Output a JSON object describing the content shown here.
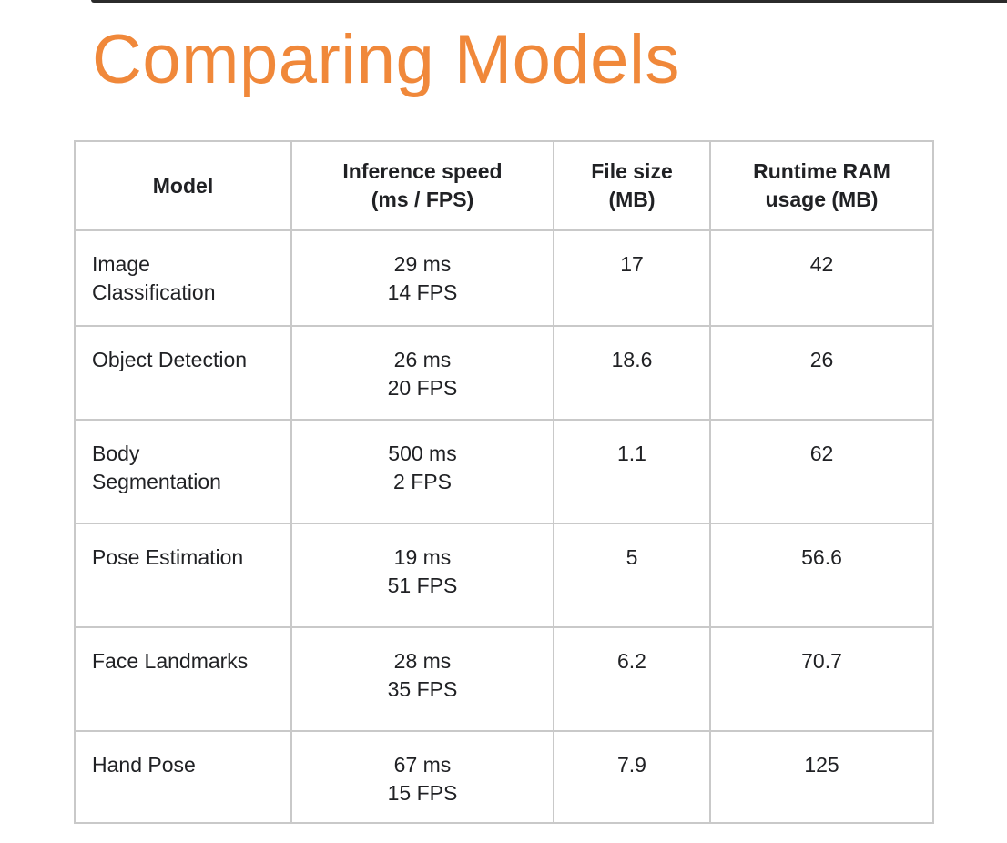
{
  "slide": {
    "title": "Comparing Models"
  },
  "table": {
    "headers": [
      {
        "line1": "Model",
        "line2": ""
      },
      {
        "line1": "Inference speed",
        "line2": "(ms / FPS)"
      },
      {
        "line1": "File size",
        "line2": "(MB)"
      },
      {
        "line1": "Runtime RAM",
        "line2": "usage (MB)"
      }
    ],
    "rows": [
      {
        "model_line1": "Image",
        "model_line2": "Classification",
        "speed_ms": "29 ms",
        "speed_fps": "14 FPS",
        "file_size": "17",
        "ram": "42"
      },
      {
        "model_line1": "Object Detection",
        "model_line2": "",
        "speed_ms": "26 ms",
        "speed_fps": "20 FPS",
        "file_size": "18.6",
        "ram": "26"
      },
      {
        "model_line1": "Body",
        "model_line2": "Segmentation",
        "speed_ms": "500 ms",
        "speed_fps": "2 FPS",
        "file_size": "1.1",
        "ram": "62"
      },
      {
        "model_line1": "Pose Estimation",
        "model_line2": "",
        "speed_ms": "19 ms",
        "speed_fps": "51 FPS",
        "file_size": "5",
        "ram": "56.6"
      },
      {
        "model_line1": "Face Landmarks",
        "model_line2": "",
        "speed_ms": "28 ms",
        "speed_fps": "35 FPS",
        "file_size": "6.2",
        "ram": "70.7"
      },
      {
        "model_line1": "Hand Pose",
        "model_line2": "",
        "speed_ms": "67 ms",
        "speed_fps": "15 FPS",
        "file_size": "7.9",
        "ram": "125"
      }
    ]
  }
}
